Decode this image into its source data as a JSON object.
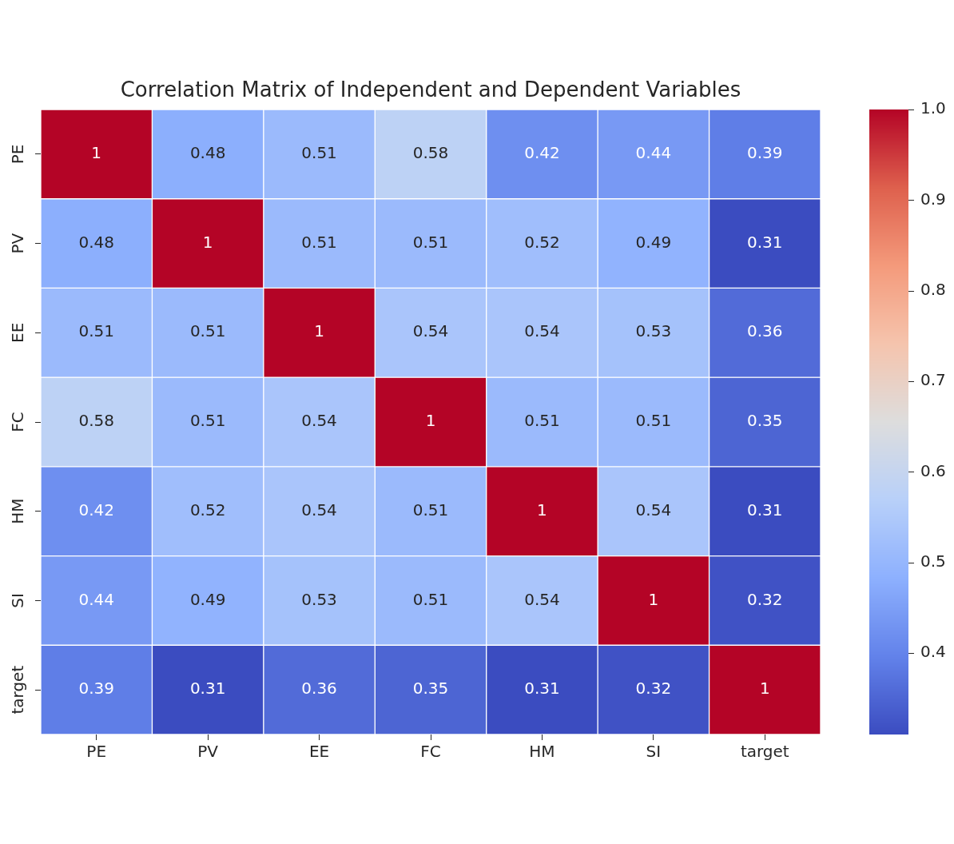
{
  "chart_data": {
    "type": "heatmap",
    "title": "Correlation Matrix of Independent and Dependent Variables",
    "categories": [
      "PE",
      "PV",
      "EE",
      "FC",
      "HM",
      "SI",
      "target"
    ],
    "y_categories": [
      "PE",
      "PV",
      "EE",
      "FC",
      "HM",
      "SI",
      "target"
    ],
    "cells": [
      [
        1,
        0.48,
        0.51,
        0.58,
        0.42,
        0.44,
        0.39
      ],
      [
        0.48,
        1,
        0.51,
        0.51,
        0.52,
        0.49,
        0.31
      ],
      [
        0.51,
        0.51,
        1,
        0.54,
        0.54,
        0.53,
        0.36
      ],
      [
        0.58,
        0.51,
        0.54,
        1,
        0.51,
        0.51,
        0.35
      ],
      [
        0.42,
        0.52,
        0.54,
        0.51,
        1,
        0.54,
        0.31
      ],
      [
        0.44,
        0.49,
        0.53,
        0.51,
        0.54,
        1,
        0.32
      ],
      [
        0.39,
        0.31,
        0.36,
        0.35,
        0.31,
        0.32,
        1
      ]
    ],
    "clim": [
      0.31,
      1
    ],
    "cticks": [
      0.4,
      0.5,
      0.6,
      0.7,
      0.8,
      0.9,
      {
        "value": 1,
        "label": "1.0"
      }
    ],
    "data_labels": true
  }
}
